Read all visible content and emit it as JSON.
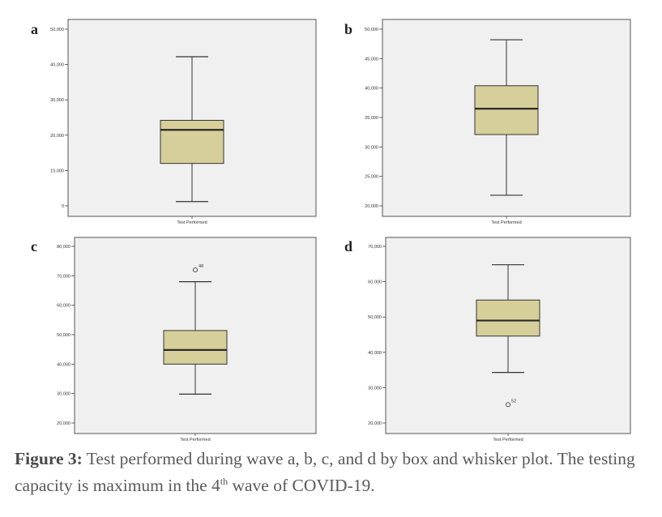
{
  "chart_data": [
    {
      "type": "box",
      "panel": "a",
      "xlabel": "Test Performed",
      "ylim": [
        0,
        50000
      ],
      "yticks": [
        0,
        10000,
        20000,
        30000,
        40000,
        50000
      ],
      "ytick_labels": [
        "0",
        "10,000",
        "20,000",
        "30,000",
        "40,000",
        "50,000"
      ],
      "box": {
        "min": 1200,
        "q1": 12000,
        "median": 21500,
        "q3": 24200,
        "max": 42200
      },
      "outliers": [],
      "box_color": "#d6cf9a"
    },
    {
      "type": "box",
      "panel": "b",
      "xlabel": "Test Performed",
      "ylim": [
        20000,
        50000
      ],
      "yticks": [
        20000,
        25000,
        30000,
        35000,
        40000,
        45000,
        50000
      ],
      "ytick_labels": [
        "20,000",
        "25,000",
        "30,000",
        "35,000",
        "40,000",
        "45,000",
        "50,000"
      ],
      "box": {
        "min": 21800,
        "q1": 32100,
        "median": 36500,
        "q3": 40400,
        "max": 48200
      },
      "outliers": [],
      "box_color": "#d6cf9a"
    },
    {
      "type": "box",
      "panel": "c",
      "xlabel": "Test Performed",
      "ylim": [
        20000,
        80000
      ],
      "yticks": [
        20000,
        30000,
        40000,
        50000,
        60000,
        70000,
        80000
      ],
      "ytick_labels": [
        "20,000",
        "30,000",
        "40,000",
        "50,000",
        "60,000",
        "70,000",
        "80,000"
      ],
      "box": {
        "min": 29800,
        "q1": 40000,
        "median": 44800,
        "q3": 51400,
        "max": 68000
      },
      "outliers": [
        {
          "value": 72000,
          "label": "48"
        }
      ],
      "box_color": "#d6cf9a"
    },
    {
      "type": "box",
      "panel": "d",
      "xlabel": "Test Performed",
      "ylim": [
        20000,
        70000
      ],
      "yticks": [
        20000,
        30000,
        40000,
        50000,
        60000,
        70000
      ],
      "ytick_labels": [
        "20,000",
        "30,000",
        "40,000",
        "50,000",
        "60,000",
        "70,000"
      ],
      "box": {
        "min": 34300,
        "q1": 44600,
        "median": 49000,
        "q3": 54800,
        "max": 64800
      },
      "outliers": [
        {
          "value": 25200,
          "label": "52"
        }
      ],
      "box_color": "#d6cf9a"
    }
  ],
  "caption": {
    "label": "Figure 3:",
    "text_part1": " Test performed during wave a, b, c, and d by box and whisker plot. The testing capacity is maximum in the 4",
    "superscript": "th",
    "text_part2": " wave of COVID-19."
  }
}
